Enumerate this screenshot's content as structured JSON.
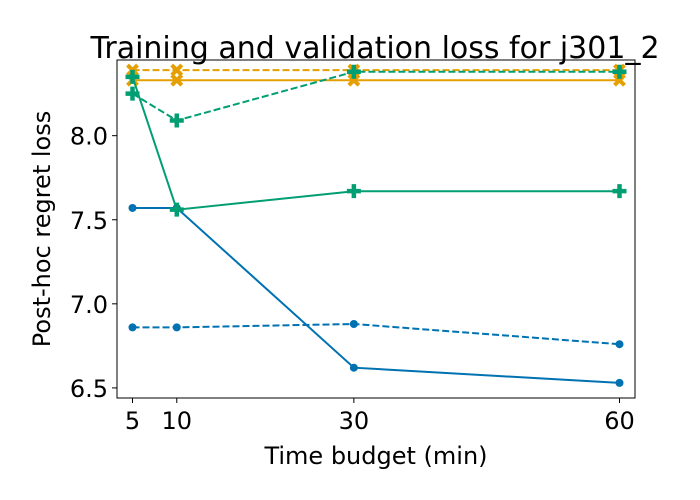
{
  "chart_data": {
    "type": "line",
    "title": "Training and validation loss for j301_2",
    "xlabel": "Time budget (min)",
    "ylabel": "Post-hoc regret loss",
    "x": [
      5,
      10,
      30,
      60
    ],
    "xticks": [
      5,
      10,
      30,
      60
    ],
    "yticks": [
      6.5,
      7.0,
      7.5,
      8.0
    ],
    "ytick_labels": [
      "6.5",
      "7.0",
      "7.5",
      "8.0"
    ],
    "xlim": [
      3.25,
      61.75
    ],
    "ylim": [
      6.44,
      8.45
    ],
    "grid": false,
    "legend": "none",
    "series": [
      {
        "color": "#0072b2",
        "style": "solid",
        "marker": "circle",
        "values": [
          7.57,
          7.57,
          6.62,
          6.53
        ]
      },
      {
        "color": "#0072b2",
        "style": "dashed",
        "marker": "circle",
        "values": [
          6.86,
          6.86,
          6.88,
          6.76
        ]
      },
      {
        "color": "#e69f00",
        "style": "solid",
        "marker": "x",
        "values": [
          8.33,
          8.33,
          8.33,
          8.33
        ]
      },
      {
        "color": "#e69f00",
        "style": "dashed",
        "marker": "x",
        "values": [
          8.39,
          8.39,
          8.39,
          8.39
        ]
      },
      {
        "color": "#009e73",
        "style": "solid",
        "marker": "plus",
        "values": [
          8.35,
          7.56,
          7.67,
          7.67
        ]
      },
      {
        "color": "#009e73",
        "style": "dashed",
        "marker": "plus",
        "values": [
          8.25,
          8.09,
          8.38,
          8.38
        ]
      }
    ]
  }
}
